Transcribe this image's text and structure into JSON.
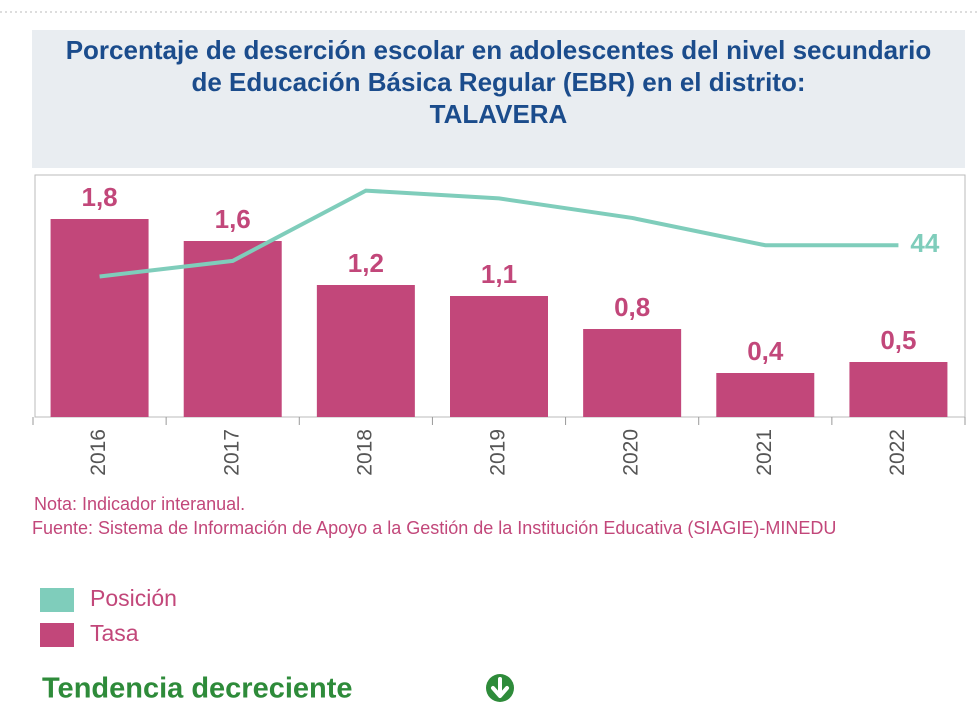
{
  "chart_data": {
    "type": "bar",
    "title": "Porcentaje de deserción escolar en adolescentes del nivel secundario de Educación Básica Regular (EBR) en el distrito:",
    "subtitle": "TALAVERA",
    "categories": [
      "2016",
      "2017",
      "2018",
      "2019",
      "2020",
      "2021",
      "2022"
    ],
    "series": [
      {
        "name": "Posición",
        "color": "#7fcdbb",
        "type": "line",
        "axis": "y2",
        "values": [
          36,
          40,
          58,
          56,
          51,
          44,
          44
        ]
      },
      {
        "name": "Tasa",
        "color": "#c2477a",
        "type": "bar",
        "values": [
          1.8,
          1.6,
          1.2,
          1.1,
          0.8,
          0.4,
          0.5
        ],
        "value_labels": [
          "1,8",
          "1,6",
          "1,2",
          "1,1",
          "0,8",
          "0,4",
          "0,5"
        ]
      }
    ],
    "ylim": [
      0,
      2.2
    ],
    "y2lim": [
      0,
      62
    ],
    "note": "Nota: Indicador interanual.",
    "source": "Fuente: Sistema de Información de Apoyo a la Gestión de la Institución Educativa (SIAGIE)-MINEDU",
    "trend": "Tendencia decreciente"
  }
}
